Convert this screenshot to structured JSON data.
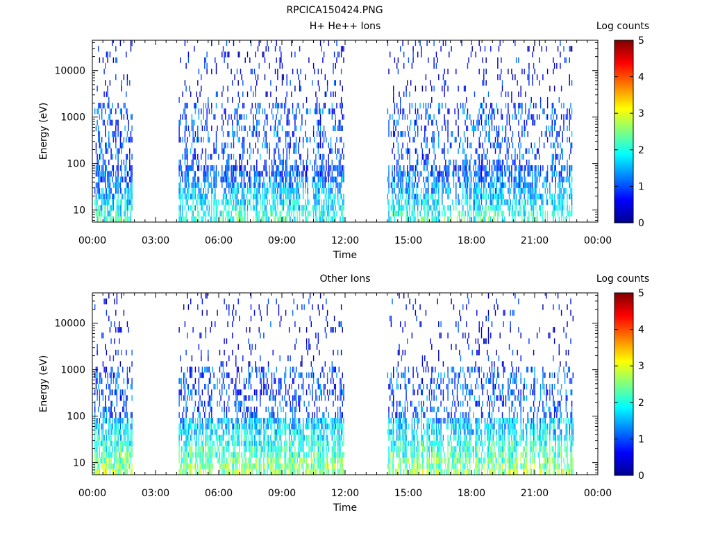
{
  "figure_title": "RPCICA150424.PNG",
  "chart_data": [
    {
      "type": "heatmap",
      "title": "H+ He++ Ions",
      "xlabel": "Time",
      "ylabel": "Energy (eV)",
      "x_ticks": [
        "00:00",
        "03:00",
        "06:00",
        "09:00",
        "12:00",
        "15:00",
        "18:00",
        "21:00",
        "00:00"
      ],
      "x_range_hours": [
        0,
        24
      ],
      "y_scale": "log",
      "y_ticks": [
        "10",
        "100",
        "1000",
        "10000"
      ],
      "y_range_eV": [
        5.5,
        45000
      ],
      "colorbar": {
        "label": "Log counts",
        "range": [
          0,
          5
        ],
        "ticks": [
          "0",
          "1",
          "2",
          "3",
          "4",
          "5"
        ]
      },
      "coverage_hours": [
        [
          0.1,
          1.9
        ],
        [
          4.1,
          11.95
        ],
        [
          14.0,
          22.8
        ]
      ],
      "grid": false,
      "intensity_note": "low-energy (<100 eV) counts mostly 1-3 log counts; sparse blue pixels up to ~40 keV"
    },
    {
      "type": "heatmap",
      "title": "Other Ions",
      "xlabel": "Time",
      "ylabel": "Energy (eV)",
      "x_ticks": [
        "00:00",
        "03:00",
        "06:00",
        "09:00",
        "12:00",
        "15:00",
        "18:00",
        "21:00",
        "00:00"
      ],
      "x_range_hours": [
        0,
        24
      ],
      "y_scale": "log",
      "y_ticks": [
        "10",
        "100",
        "1000",
        "10000"
      ],
      "y_range_eV": [
        5.5,
        45000
      ],
      "colorbar": {
        "label": "Log counts",
        "range": [
          0,
          5
        ],
        "ticks": [
          "0",
          "1",
          "2",
          "3",
          "4",
          "5"
        ]
      },
      "coverage_hours": [
        [
          0.1,
          1.9
        ],
        [
          4.1,
          11.95
        ],
        [
          14.0,
          22.8
        ]
      ],
      "grid": false,
      "intensity_note": "strong low-energy band (<100 eV) with 2-3.5 log counts, peaks near 4.1h and 21h"
    }
  ]
}
